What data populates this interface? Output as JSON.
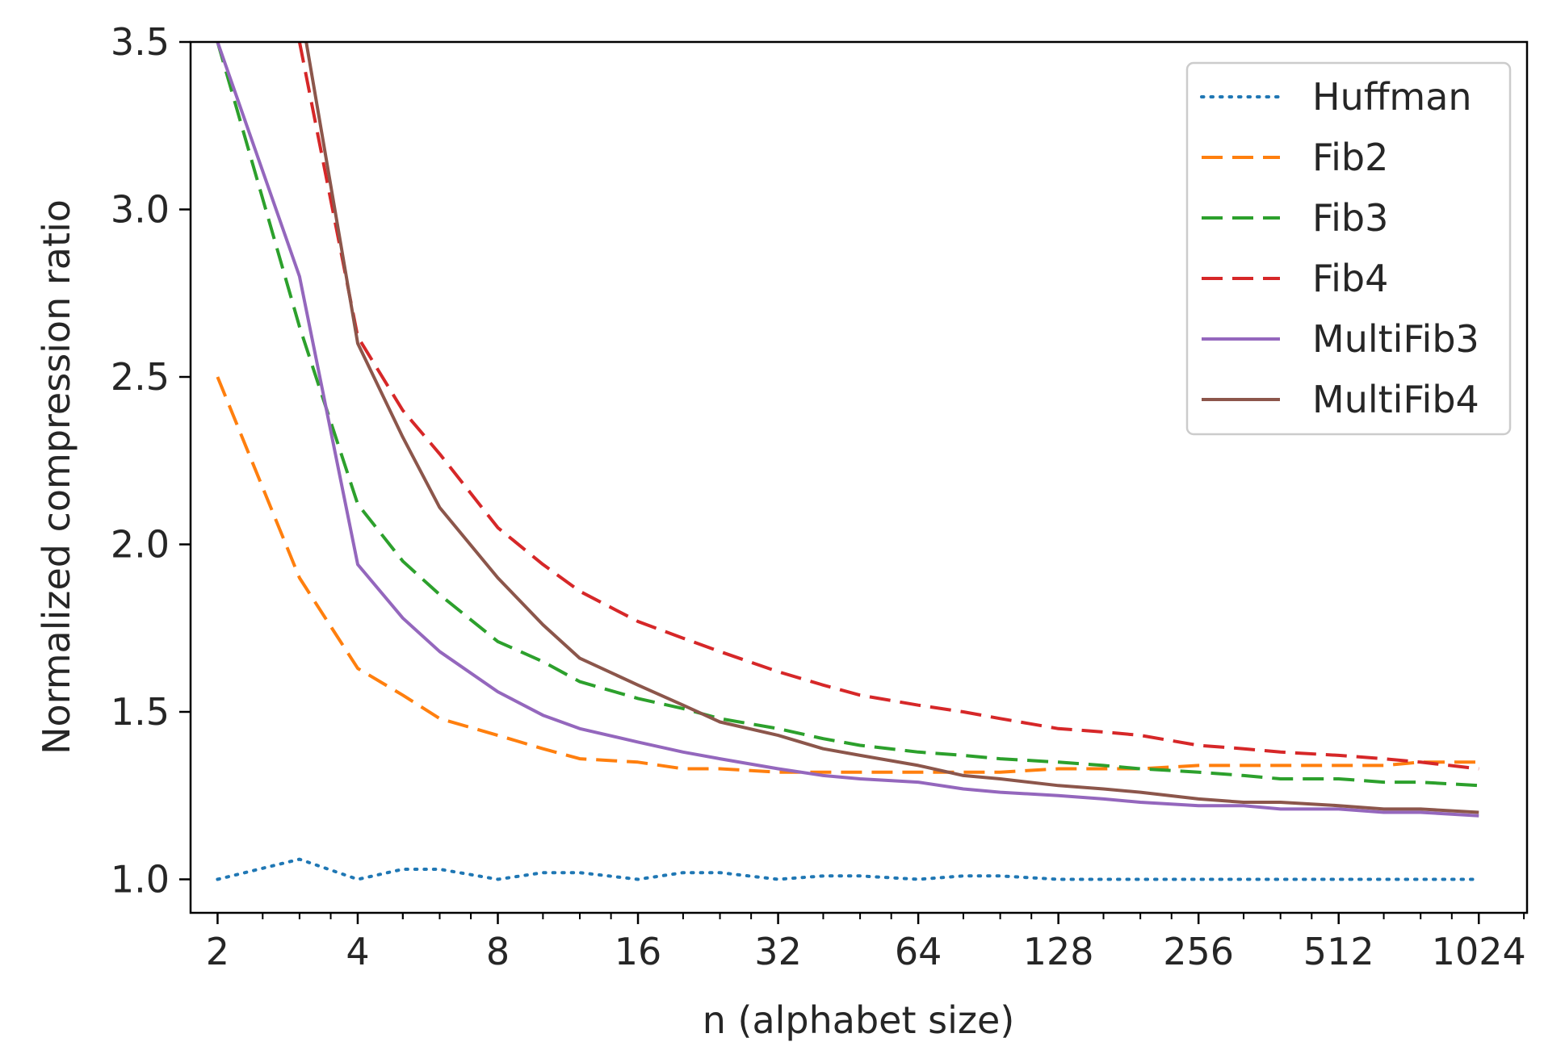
{
  "chart_data": {
    "type": "line",
    "xlabel": "n (alphabet size)",
    "ylabel": "Normalized compression ratio",
    "x_scale": "log2",
    "xlim": [
      1.75,
      1300
    ],
    "ylim": [
      0.9,
      3.5
    ],
    "x_ticks": [
      2,
      4,
      8,
      16,
      32,
      64,
      128,
      256,
      512,
      1024
    ],
    "x_tick_labels": [
      "2",
      "4",
      "8",
      "16",
      "32",
      "64",
      "128",
      "256",
      "512",
      "1024"
    ],
    "y_ticks": [
      1.0,
      1.5,
      2.0,
      2.5,
      3.0,
      3.5
    ],
    "y_tick_labels": [
      "1.0",
      "1.5",
      "2.0",
      "2.5",
      "3.0",
      "3.5"
    ],
    "grid": false,
    "legend_position": "upper right",
    "series": [
      {
        "name": "Huffman",
        "color": "#1f77b4",
        "style": "dotted",
        "x": [
          2,
          3,
          4,
          5,
          6,
          8,
          10,
          12,
          16,
          20,
          24,
          32,
          40,
          48,
          64,
          80,
          96,
          128,
          160,
          192,
          256,
          320,
          384,
          512,
          640,
          768,
          1024
        ],
        "y": [
          1.0,
          1.06,
          1.0,
          1.03,
          1.03,
          1.0,
          1.02,
          1.02,
          1.0,
          1.02,
          1.02,
          1.0,
          1.01,
          1.01,
          1.0,
          1.01,
          1.01,
          1.0,
          1.0,
          1.0,
          1.0,
          1.0,
          1.0,
          1.0,
          1.0,
          1.0,
          1.0
        ]
      },
      {
        "name": "Fib2",
        "color": "#ff7f0e",
        "style": "dashed",
        "x": [
          2,
          3,
          4,
          5,
          6,
          8,
          10,
          12,
          16,
          20,
          24,
          32,
          40,
          48,
          64,
          80,
          96,
          128,
          160,
          192,
          256,
          320,
          384,
          512,
          640,
          768,
          1024
        ],
        "y": [
          2.5,
          1.9,
          1.63,
          1.55,
          1.48,
          1.43,
          1.39,
          1.36,
          1.35,
          1.33,
          1.33,
          1.32,
          1.32,
          1.32,
          1.32,
          1.32,
          1.32,
          1.33,
          1.33,
          1.33,
          1.34,
          1.34,
          1.34,
          1.34,
          1.34,
          1.35,
          1.35
        ]
      },
      {
        "name": "Fib3",
        "color": "#2ca02c",
        "style": "dashed",
        "x": [
          2,
          3,
          4,
          5,
          6,
          8,
          10,
          12,
          16,
          20,
          24,
          32,
          40,
          48,
          64,
          80,
          96,
          128,
          160,
          192,
          256,
          320,
          384,
          512,
          640,
          768,
          1024
        ],
        "y": [
          3.5,
          2.65,
          2.12,
          1.95,
          1.85,
          1.71,
          1.65,
          1.59,
          1.54,
          1.51,
          1.48,
          1.45,
          1.42,
          1.4,
          1.38,
          1.37,
          1.36,
          1.35,
          1.34,
          1.33,
          1.32,
          1.31,
          1.3,
          1.3,
          1.29,
          1.29,
          1.28
        ]
      },
      {
        "name": "Fib4",
        "color": "#d62728",
        "style": "dashed",
        "x": [
          3,
          4,
          5,
          6,
          8,
          10,
          12,
          16,
          20,
          24,
          32,
          40,
          48,
          64,
          80,
          96,
          128,
          160,
          192,
          256,
          320,
          384,
          512,
          640,
          768,
          1024
        ],
        "y": [
          3.5,
          2.62,
          2.4,
          2.27,
          2.05,
          1.94,
          1.86,
          1.77,
          1.72,
          1.68,
          1.62,
          1.58,
          1.55,
          1.52,
          1.5,
          1.48,
          1.45,
          1.44,
          1.43,
          1.4,
          1.39,
          1.38,
          1.37,
          1.36,
          1.35,
          1.33
        ]
      },
      {
        "name": "MultiFib3",
        "color": "#9467bd",
        "style": "solid",
        "x": [
          2,
          3,
          4,
          5,
          6,
          8,
          10,
          12,
          16,
          20,
          24,
          32,
          40,
          48,
          64,
          80,
          96,
          128,
          160,
          192,
          256,
          320,
          384,
          512,
          640,
          768,
          1024
        ],
        "y": [
          3.5,
          2.8,
          1.94,
          1.78,
          1.68,
          1.56,
          1.49,
          1.45,
          1.41,
          1.38,
          1.36,
          1.33,
          1.31,
          1.3,
          1.29,
          1.27,
          1.26,
          1.25,
          1.24,
          1.23,
          1.22,
          1.22,
          1.21,
          1.21,
          1.2,
          1.2,
          1.19
        ]
      },
      {
        "name": "MultiFib4",
        "color": "#8c564b",
        "style": "solid",
        "x": [
          3.1,
          4,
          5,
          6,
          8,
          10,
          12,
          16,
          20,
          24,
          32,
          40,
          48,
          64,
          80,
          96,
          128,
          160,
          192,
          256,
          320,
          384,
          512,
          640,
          768,
          1024
        ],
        "y": [
          3.5,
          2.6,
          2.32,
          2.11,
          1.9,
          1.76,
          1.66,
          1.58,
          1.52,
          1.47,
          1.43,
          1.39,
          1.37,
          1.34,
          1.31,
          1.3,
          1.28,
          1.27,
          1.26,
          1.24,
          1.23,
          1.23,
          1.22,
          1.21,
          1.21,
          1.2
        ]
      }
    ]
  }
}
